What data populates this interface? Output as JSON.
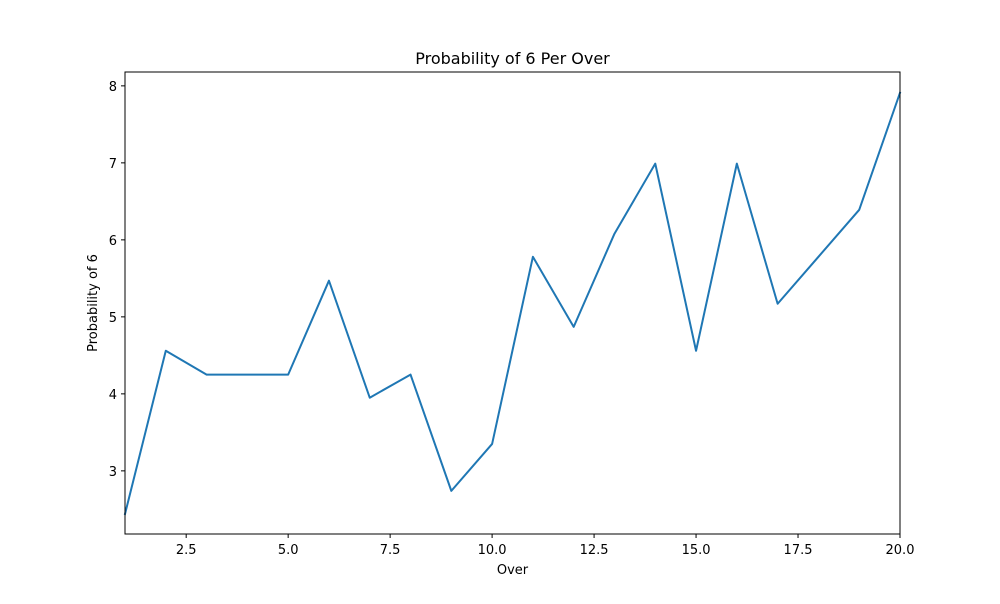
{
  "chart_data": {
    "type": "line",
    "title": "Probability of 6 Per Over",
    "xlabel": "Over",
    "ylabel": "Probability of 6",
    "xlim": [
      1,
      20
    ],
    "ylim": [
      2.18,
      8.18
    ],
    "xticks": [
      2.5,
      5.0,
      7.5,
      10.0,
      12.5,
      15.0,
      17.5,
      20.0
    ],
    "xtick_labels": [
      "2.5",
      "5.0",
      "7.5",
      "10.0",
      "12.5",
      "15.0",
      "17.5",
      "20.0"
    ],
    "yticks": [
      3,
      4,
      5,
      6,
      7,
      8
    ],
    "ytick_labels": [
      "3",
      "4",
      "5",
      "6",
      "7",
      "8"
    ],
    "grid": false,
    "series": [
      {
        "color": "#1f77b4",
        "x": [
          1,
          2,
          3,
          4,
          5,
          6,
          7,
          8,
          9,
          10,
          11,
          12,
          13,
          14,
          15,
          16,
          17,
          18,
          19,
          20
        ],
        "y": [
          2.44,
          4.56,
          4.25,
          4.25,
          4.25,
          5.47,
          3.95,
          4.25,
          2.74,
          3.35,
          5.78,
          4.87,
          6.08,
          6.99,
          4.56,
          6.99,
          5.17,
          5.78,
          6.39,
          7.91
        ]
      }
    ]
  }
}
